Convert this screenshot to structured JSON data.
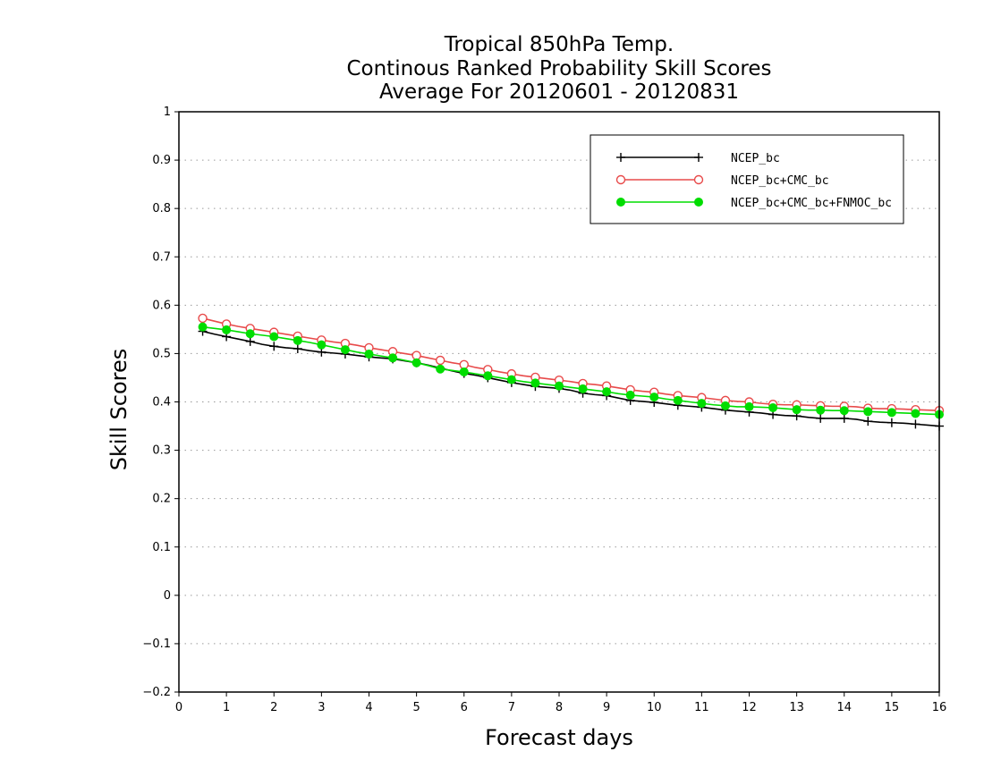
{
  "chart_data": {
    "type": "line",
    "title_lines": [
      "Tropical 850hPa Temp.",
      "Continous Ranked Probability Skill Scores",
      "Average For 20120601 - 20120831"
    ],
    "xlabel": "Forecast days",
    "ylabel": "Skill Scores",
    "xlim": [
      0,
      16
    ],
    "ylim": [
      -0.2,
      1
    ],
    "x_ticks": [
      "0",
      "1",
      "2",
      "3",
      "4",
      "5",
      "6",
      "7",
      "8",
      "9",
      "10",
      "11",
      "12",
      "13",
      "14",
      "15",
      "16"
    ],
    "y_ticks": [
      "-0.2",
      "-0.1",
      "0",
      "0.1",
      "0.2",
      "0.3",
      "0.4",
      "0.5",
      "0.6",
      "0.7",
      "0.8",
      "0.9",
      "1"
    ],
    "grid": "dotted horizontal",
    "legend_position": "top-right",
    "x": [
      0.5,
      0.75,
      1.0,
      1.25,
      1.5,
      1.75,
      2.0,
      2.25,
      2.5,
      2.75,
      3.0,
      3.25,
      3.5,
      3.75,
      4.0,
      4.25,
      4.5,
      4.75,
      5.0,
      5.25,
      5.5,
      5.75,
      6.0,
      6.25,
      6.5,
      6.75,
      7.0,
      7.25,
      7.5,
      7.75,
      8.0,
      8.25,
      8.5,
      8.75,
      9.0,
      9.25,
      9.5,
      9.75,
      10.0,
      10.25,
      10.5,
      10.75,
      11.0,
      11.25,
      11.5,
      11.75,
      12.0,
      12.25,
      12.5,
      12.75,
      13.0,
      13.25,
      13.5,
      13.75,
      14.0,
      14.25,
      14.5,
      14.75,
      15.0,
      15.25,
      15.5,
      15.75,
      16.0
    ],
    "series": [
      {
        "name": "NCEP_bc",
        "color": "#000000",
        "marker": "plus",
        "values": [
          0.546,
          0.54,
          0.535,
          0.53,
          0.525,
          0.519,
          0.515,
          0.512,
          0.51,
          0.506,
          0.503,
          0.501,
          0.499,
          0.496,
          0.493,
          0.491,
          0.489,
          0.485,
          0.481,
          0.476,
          0.47,
          0.464,
          0.459,
          0.455,
          0.45,
          0.445,
          0.44,
          0.436,
          0.432,
          0.43,
          0.428,
          0.424,
          0.418,
          0.415,
          0.413,
          0.408,
          0.403,
          0.401,
          0.399,
          0.396,
          0.393,
          0.391,
          0.389,
          0.386,
          0.383,
          0.381,
          0.379,
          0.377,
          0.374,
          0.372,
          0.371,
          0.368,
          0.366,
          0.366,
          0.366,
          0.364,
          0.36,
          0.358,
          0.357,
          0.356,
          0.354,
          0.352,
          0.35
        ]
      },
      {
        "name": "NCEP_bc+CMC_bc",
        "color": "#e84a4a",
        "marker": "open-circle",
        "values": [
          0.573,
          0.567,
          0.561,
          0.556,
          0.552,
          0.548,
          0.544,
          0.54,
          0.536,
          0.532,
          0.528,
          0.524,
          0.521,
          0.517,
          0.512,
          0.508,
          0.504,
          0.5,
          0.496,
          0.491,
          0.486,
          0.481,
          0.477,
          0.471,
          0.467,
          0.462,
          0.458,
          0.454,
          0.451,
          0.448,
          0.445,
          0.442,
          0.438,
          0.436,
          0.433,
          0.429,
          0.425,
          0.422,
          0.42,
          0.416,
          0.413,
          0.411,
          0.409,
          0.406,
          0.403,
          0.401,
          0.4,
          0.397,
          0.395,
          0.394,
          0.394,
          0.393,
          0.392,
          0.391,
          0.391,
          0.39,
          0.387,
          0.386,
          0.386,
          0.385,
          0.384,
          0.383,
          0.382
        ]
      },
      {
        "name": "NCEP_bc+CMC_bc+FNMOC_bc",
        "color": "#00dd00",
        "marker": "filled-circle",
        "values": [
          0.555,
          0.552,
          0.549,
          0.545,
          0.541,
          0.538,
          0.535,
          0.531,
          0.527,
          0.523,
          0.518,
          0.513,
          0.508,
          0.503,
          0.499,
          0.495,
          0.491,
          0.486,
          0.481,
          0.475,
          0.468,
          0.465,
          0.462,
          0.458,
          0.454,
          0.45,
          0.446,
          0.442,
          0.439,
          0.436,
          0.433,
          0.43,
          0.427,
          0.424,
          0.421,
          0.417,
          0.414,
          0.412,
          0.41,
          0.406,
          0.403,
          0.4,
          0.397,
          0.394,
          0.392,
          0.39,
          0.39,
          0.389,
          0.388,
          0.386,
          0.384,
          0.383,
          0.383,
          0.382,
          0.382,
          0.381,
          0.38,
          0.379,
          0.378,
          0.377,
          0.376,
          0.375,
          0.374
        ]
      }
    ]
  }
}
